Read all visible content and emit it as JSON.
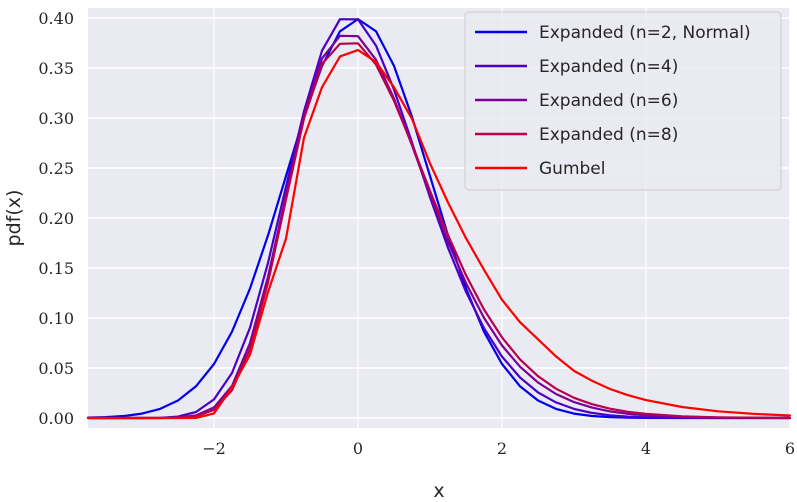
{
  "chart_data": {
    "type": "line",
    "title": "",
    "xlabel": "x",
    "ylabel": "pdf(x)",
    "xlim": [
      -3.75,
      6
    ],
    "ylim": [
      -0.01,
      0.41
    ],
    "grid": true,
    "legend_position": "top-right",
    "x_ticks": [
      {
        "value": -2,
        "label": "−2"
      },
      {
        "value": 0,
        "label": "0"
      },
      {
        "value": 2,
        "label": "2"
      },
      {
        "value": 4,
        "label": "4"
      },
      {
        "value": 6,
        "label": "6"
      }
    ],
    "y_ticks": [
      {
        "value": 0.0,
        "label": "0.00"
      },
      {
        "value": 0.05,
        "label": "0.05"
      },
      {
        "value": 0.1,
        "label": "0.10"
      },
      {
        "value": 0.15,
        "label": "0.15"
      },
      {
        "value": 0.2,
        "label": "0.20"
      },
      {
        "value": 0.25,
        "label": "0.25"
      },
      {
        "value": 0.3,
        "label": "0.30"
      },
      {
        "value": 0.35,
        "label": "0.35"
      },
      {
        "value": 0.4,
        "label": "0.40"
      }
    ],
    "series": [
      {
        "name": "Expanded (n=2, Normal)",
        "color": "#0000ee",
        "x": [
          -3.75,
          -3.5,
          -3.25,
          -3,
          -2.75,
          -2.5,
          -2.25,
          -2,
          -1.75,
          -1.5,
          -1.25,
          -1,
          -0.75,
          -0.5,
          -0.25,
          0,
          0.25,
          0.5,
          0.75,
          1,
          1.25,
          1.5,
          1.75,
          2,
          2.25,
          2.5,
          2.75,
          3,
          3.25,
          3.5,
          3.75,
          4,
          4.5,
          5,
          5.5,
          6
        ],
        "y": [
          0.0004,
          0.0009,
          0.002,
          0.0044,
          0.0091,
          0.0175,
          0.0317,
          0.054,
          0.0863,
          0.1295,
          0.1826,
          0.242,
          0.3011,
          0.3521,
          0.3867,
          0.3989,
          0.3867,
          0.3521,
          0.3011,
          0.242,
          0.1826,
          0.1295,
          0.0863,
          0.054,
          0.0317,
          0.0175,
          0.0091,
          0.0044,
          0.002,
          0.0009,
          0.0004,
          0.0001,
          0,
          0,
          0,
          0
        ]
      },
      {
        "name": "Expanded (n=4)",
        "color": "#4a00c8",
        "x": [
          -3.75,
          -3.5,
          -3.25,
          -3,
          -2.75,
          -2.5,
          -2.25,
          -2,
          -1.75,
          -1.5,
          -1.25,
          -1,
          -0.75,
          -0.5,
          -0.25,
          0,
          0.25,
          0.5,
          0.75,
          1,
          1.25,
          1.5,
          1.75,
          2,
          2.25,
          2.5,
          2.75,
          3,
          3.25,
          3.5,
          3.75,
          4,
          4.5,
          5,
          5.5,
          6
        ],
        "y": [
          0,
          0,
          0,
          0,
          0.0002,
          0.0014,
          0.006,
          0.0186,
          0.045,
          0.0903,
          0.1551,
          0.2312,
          0.3068,
          0.3673,
          0.3988,
          0.3986,
          0.3724,
          0.3284,
          0.2755,
          0.2207,
          0.1702,
          0.1262,
          0.0898,
          0.0614,
          0.0405,
          0.0256,
          0.0156,
          0.0091,
          0.0051,
          0.0027,
          0.0014,
          0.0007,
          0.0002,
          0,
          0,
          0
        ]
      },
      {
        "name": "Expanded (n=6)",
        "color": "#7a0099",
        "x": [
          -3.75,
          -3.5,
          -3.25,
          -3,
          -2.75,
          -2.5,
          -2.25,
          -2,
          -1.75,
          -1.5,
          -1.25,
          -1,
          -0.75,
          -0.5,
          -0.25,
          0,
          0.25,
          0.5,
          0.75,
          1,
          1.25,
          1.5,
          1.75,
          2,
          2.25,
          2.5,
          2.75,
          3,
          3.25,
          3.5,
          3.75,
          4,
          4.5,
          5,
          5.5,
          6
        ],
        "y": [
          0,
          0,
          0,
          0,
          0,
          0.0004,
          0.0025,
          0.0106,
          0.032,
          0.0749,
          0.1412,
          0.2222,
          0.3027,
          0.3596,
          0.3822,
          0.3818,
          0.3582,
          0.3194,
          0.2726,
          0.2231,
          0.1762,
          0.1348,
          0.1001,
          0.0725,
          0.0513,
          0.0355,
          0.024,
          0.0159,
          0.0104,
          0.0066,
          0.0042,
          0.0026,
          0.001,
          0.0004,
          0.0001,
          0
        ]
      },
      {
        "name": "Expanded (n=8)",
        "color": "#b8004d",
        "x": [
          -3.75,
          -3.5,
          -3.25,
          -3,
          -2.75,
          -2.5,
          -2.25,
          -2,
          -1.75,
          -1.5,
          -1.25,
          -1,
          -0.75,
          -0.5,
          -0.25,
          0,
          0.25,
          0.5,
          0.75,
          1,
          1.25,
          1.5,
          1.75,
          2,
          2.25,
          2.5,
          2.75,
          3,
          3.25,
          3.5,
          3.75,
          4,
          4.5,
          5,
          5.5,
          6
        ],
        "y": [
          0,
          0,
          0,
          0,
          0,
          0.0002,
          0.0016,
          0.0082,
          0.0277,
          0.0692,
          0.1356,
          0.2186,
          0.2995,
          0.3541,
          0.3742,
          0.3747,
          0.3534,
          0.3172,
          0.2735,
          0.2271,
          0.1829,
          0.1427,
          0.1085,
          0.0806,
          0.0586,
          0.0418,
          0.0293,
          0.0202,
          0.0138,
          0.0093,
          0.0062,
          0.0041,
          0.0017,
          0.0007,
          0.0003,
          0.0001
        ]
      },
      {
        "name": "Gumbel",
        "color": "#ff0000",
        "x": [
          -3.75,
          -3.5,
          -3.25,
          -3,
          -2.75,
          -2.5,
          -2.25,
          -2,
          -1.75,
          -1.5,
          -1.25,
          -1,
          -0.75,
          -0.5,
          -0.25,
          0,
          0.25,
          0.5,
          0.75,
          1,
          1.25,
          1.5,
          1.75,
          2,
          2.25,
          2.5,
          2.75,
          3,
          3.25,
          3.5,
          3.75,
          4,
          4.5,
          5,
          5.5,
          6
        ],
        "y": [
          0,
          0,
          0,
          0,
          0,
          0,
          0.0001,
          0.0046,
          0.0305,
          0.0634,
          0.1259,
          0.1794,
          0.2803,
          0.3307,
          0.3616,
          0.3679,
          0.356,
          0.3307,
          0.2991,
          0.2546,
          0.2155,
          0.1798,
          0.1482,
          0.1182,
          0.0958,
          0.0787,
          0.0616,
          0.0471,
          0.0372,
          0.029,
          0.0228,
          0.0179,
          0.011,
          0.0067,
          0.0041,
          0.0025
        ]
      }
    ]
  }
}
